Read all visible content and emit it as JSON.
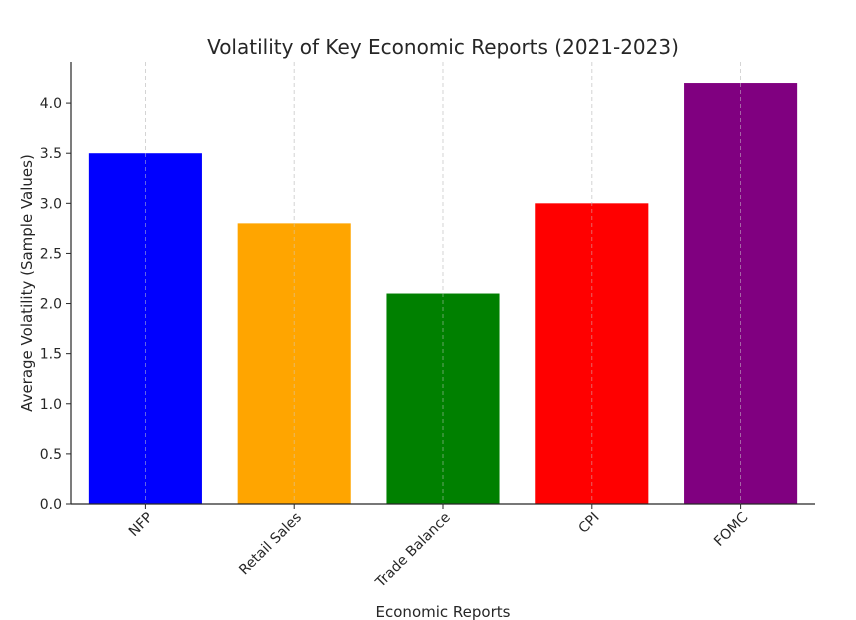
{
  "chart_data": {
    "type": "bar",
    "title": "Volatility of Key Economic Reports (2021-2023)",
    "xlabel": "Economic Reports",
    "ylabel": "Average Volatility (Sample Values)",
    "categories": [
      "NFP",
      "Retail Sales",
      "Trade Balance",
      "CPI",
      "FOMC"
    ],
    "values": [
      3.5,
      2.8,
      2.1,
      3.0,
      4.2
    ],
    "colors": [
      "#0000ff",
      "#ffa500",
      "#008000",
      "#ff0000",
      "#800080"
    ],
    "ylim": [
      0,
      4.41
    ],
    "yticks": [
      "0.0",
      "0.5",
      "1.0",
      "1.5",
      "2.0",
      "2.5",
      "3.0",
      "3.5",
      "4.0"
    ],
    "grid": "vertical",
    "legend": "none"
  }
}
